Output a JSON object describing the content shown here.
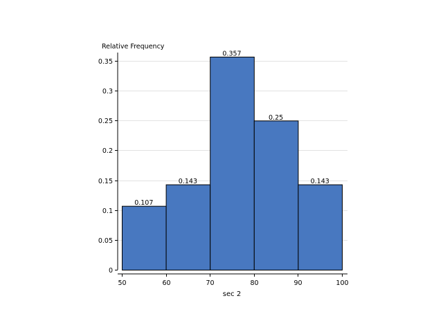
{
  "chart_data": {
    "type": "bar",
    "title": "",
    "xlabel": "sec 2",
    "ylabel": "Relative Frequency",
    "bins": [
      {
        "x0": 50,
        "x1": 60,
        "value": 0.107,
        "label": "0.107"
      },
      {
        "x0": 60,
        "x1": 70,
        "value": 0.143,
        "label": "0.143"
      },
      {
        "x0": 70,
        "x1": 80,
        "value": 0.357,
        "label": "0.357"
      },
      {
        "x0": 80,
        "x1": 90,
        "value": 0.25,
        "label": "0.25"
      },
      {
        "x0": 90,
        "x1": 100,
        "value": 0.143,
        "label": "0.143"
      }
    ],
    "xlim": [
      50,
      100
    ],
    "ylim": [
      0,
      0.357
    ],
    "xticks": [
      {
        "value": 50,
        "label": "50"
      },
      {
        "value": 60,
        "label": "60"
      },
      {
        "value": 70,
        "label": "70"
      },
      {
        "value": 80,
        "label": "80"
      },
      {
        "value": 90,
        "label": "90"
      },
      {
        "value": 100,
        "label": "100"
      }
    ],
    "yticks": [
      {
        "value": 0,
        "label": "0"
      },
      {
        "value": 0.05,
        "label": "0.05"
      },
      {
        "value": 0.1,
        "label": "0.1"
      },
      {
        "value": 0.15,
        "label": "0.15"
      },
      {
        "value": 0.2,
        "label": "0.2"
      },
      {
        "value": 0.25,
        "label": "0.25"
      },
      {
        "value": 0.3,
        "label": "0.3"
      },
      {
        "value": 0.35,
        "label": "0.35"
      }
    ],
    "grid": "horizontal",
    "bar_color": "#4878c0",
    "bar_edge_color": "#000000"
  }
}
